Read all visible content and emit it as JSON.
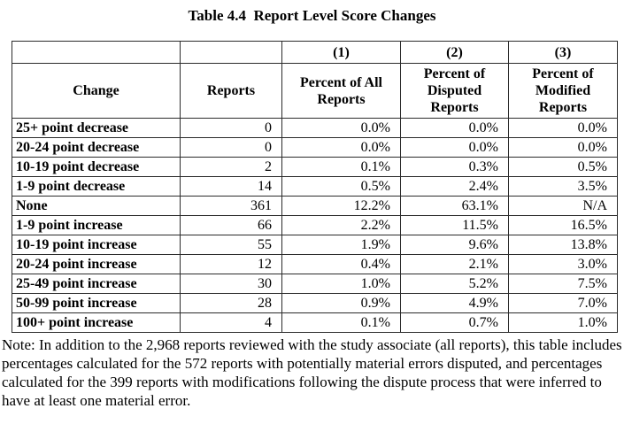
{
  "title": "Table 4.4  Report Level Score Changes",
  "colors": {
    "background": "#ffffff",
    "text": "#000000",
    "border": "#2b2b2b"
  },
  "table": {
    "column_numbers": [
      "(1)",
      "(2)",
      "(3)"
    ],
    "columns": [
      "Change",
      "Reports",
      "Percent of All Reports",
      "Percent of Disputed Reports",
      "Percent of Modified Reports"
    ],
    "rows": [
      {
        "change": "25+ point decrease",
        "reports": "0",
        "pct_all": "0.0%",
        "pct_disputed": "0.0%",
        "pct_modified": "0.0%"
      },
      {
        "change": "20-24 point decrease",
        "reports": "0",
        "pct_all": "0.0%",
        "pct_disputed": "0.0%",
        "pct_modified": "0.0%"
      },
      {
        "change": "10-19 point decrease",
        "reports": "2",
        "pct_all": "0.1%",
        "pct_disputed": "0.3%",
        "pct_modified": "0.5%"
      },
      {
        "change": "1-9 point decrease",
        "reports": "14",
        "pct_all": "0.5%",
        "pct_disputed": "2.4%",
        "pct_modified": "3.5%"
      },
      {
        "change": "None",
        "reports": "361",
        "pct_all": "12.2%",
        "pct_disputed": "63.1%",
        "pct_modified": "N/A"
      },
      {
        "change": "1-9 point increase",
        "reports": "66",
        "pct_all": "2.2%",
        "pct_disputed": "11.5%",
        "pct_modified": "16.5%"
      },
      {
        "change": "10-19 point increase",
        "reports": "55",
        "pct_all": "1.9%",
        "pct_disputed": "9.6%",
        "pct_modified": "13.8%"
      },
      {
        "change": "20-24 point increase",
        "reports": "12",
        "pct_all": "0.4%",
        "pct_disputed": "2.1%",
        "pct_modified": "3.0%"
      },
      {
        "change": "25-49 point increase",
        "reports": "30",
        "pct_all": "1.0%",
        "pct_disputed": "5.2%",
        "pct_modified": "7.5%"
      },
      {
        "change": "50-99 point increase",
        "reports": "28",
        "pct_all": "0.9%",
        "pct_disputed": "4.9%",
        "pct_modified": "7.0%"
      },
      {
        "change": "100+ point increase",
        "reports": "4",
        "pct_all": "0.1%",
        "pct_disputed": "0.7%",
        "pct_modified": "1.0%"
      }
    ]
  },
  "note": "Note: In addition to the 2,968 reports reviewed with the study associate (all reports), this table includes percentages calculated for the 572 reports with potentially material errors disputed, and percentages calculated for the 399 reports with modifications following the dispute process that were inferred to have at least one material error."
}
